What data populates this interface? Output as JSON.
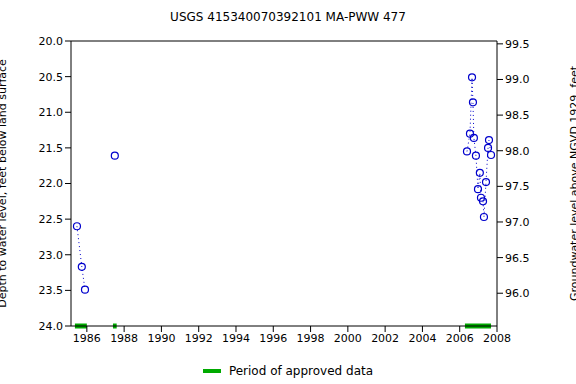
{
  "chart_data": {
    "type": "scatter",
    "title": "USGS 415340070392101 MA-PWW  477",
    "y_label": "Depth to water level, feet below land surface",
    "y2_label": "Groundwater level above NGVD 1929, feet",
    "x": [
      1985.47,
      1985.73,
      1985.9,
      null,
      1987.5,
      null,
      2006.39,
      2006.55,
      2006.66,
      2006.71,
      2006.76,
      2006.87,
      2006.98,
      2007.08,
      2007.14,
      2007.25,
      2007.3,
      2007.41,
      2007.52,
      2007.57,
      2007.68
    ],
    "values": [
      22.6,
      23.17,
      23.49,
      null,
      21.61,
      null,
      21.55,
      21.3,
      20.51,
      20.86,
      21.36,
      21.61,
      22.08,
      21.85,
      22.2,
      22.25,
      22.47,
      21.98,
      21.5,
      21.39,
      21.6
    ],
    "color": "#0000cc",
    "marker": "circle",
    "line_style": "dotted",
    "xlim": [
      1985.15,
      2008
    ],
    "xticks": [
      1986,
      1988,
      1990,
      1992,
      1994,
      1996,
      1998,
      2000,
      2002,
      2004,
      2006,
      2008
    ],
    "ylim": [
      24,
      20
    ],
    "yticks": [
      {
        "value": 20,
        "label": "20.0"
      },
      {
        "value": 20.5,
        "label": "20.5"
      },
      {
        "value": 21,
        "label": "21.0"
      },
      {
        "value": 21.5,
        "label": "21.5"
      },
      {
        "value": 22,
        "label": "22.0"
      },
      {
        "value": 22.5,
        "label": "22.5"
      },
      {
        "value": 23,
        "label": "23.0"
      },
      {
        "value": 23.5,
        "label": "23.5"
      },
      {
        "value": 24,
        "label": "24.0"
      }
    ],
    "y2lim": [
      95.54,
      99.54
    ],
    "y2ticks": [
      {
        "value": 96,
        "label": "96.0"
      },
      {
        "value": 96.5,
        "label": "96.5"
      },
      {
        "value": 97,
        "label": "97.0"
      },
      {
        "value": 97.5,
        "label": "97.5"
      },
      {
        "value": 98,
        "label": "98.0"
      },
      {
        "value": 98.5,
        "label": "98.5"
      },
      {
        "value": 99,
        "label": "99.0"
      },
      {
        "value": 99.5,
        "label": "99.5"
      }
    ],
    "legend": "bottom",
    "approved_periods": [
      [
        1985.36,
        1986.0
      ],
      [
        1987.4,
        1987.6
      ],
      [
        2006.28,
        2007.68
      ]
    ],
    "approved_label": "Period of approved data",
    "approved_color": "#00aa00"
  }
}
